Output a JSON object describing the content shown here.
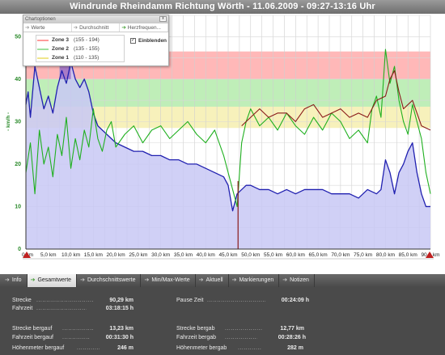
{
  "title": "Windrunde Rheindamm Richtung Wörth - 11.06.2009 - 09:27-13:16 Uhr",
  "chart_options": {
    "header": "Chartoptionen",
    "close": "x",
    "tabs": [
      {
        "label": "Werte",
        "active": false
      },
      {
        "label": "Durchschnitt",
        "active": false
      },
      {
        "label": "Herzfrequen...",
        "active": true
      }
    ],
    "zones": [
      {
        "name": "Zone 3",
        "range": "(155 - 194)",
        "color": "#ff9a9a"
      },
      {
        "name": "Zone 2",
        "range": "(135 - 155)",
        "color": "#9ee09e"
      },
      {
        "name": "Zone 1",
        "range": "(110 - 135)",
        "color": "#f0e68c"
      }
    ],
    "checkbox": {
      "label": "Einblenden",
      "checked": "✓"
    }
  },
  "chart_data": {
    "type": "line",
    "ylabel": "- km/h -",
    "ylim": [
      0,
      55
    ],
    "xlim": [
      0,
      90
    ],
    "yticks": [
      "0",
      "10",
      "20",
      "30",
      "40",
      "50"
    ],
    "xticks": [
      "0 km",
      "5,0 km",
      "10,0 km",
      "15,0 km",
      "20,0 km",
      "25,0 km",
      "30,0 km",
      "35,0 km",
      "40,0 km",
      "45,0 km",
      "50,0 km",
      "55,0 km",
      "60,0 km",
      "65,0 km",
      "70,0 km",
      "75,0 km",
      "80,0 km",
      "85,0 km",
      "90,0 km"
    ],
    "grid": true,
    "heart_rate_zones": [
      {
        "name": "Zone 3",
        "range": [
          155,
          194
        ],
        "color": "#ffb0b0"
      },
      {
        "name": "Zone 2",
        "range": [
          135,
          155
        ],
        "color": "#b8ecb0"
      },
      {
        "name": "Zone 1",
        "range": [
          110,
          135
        ],
        "color": "#f6f0b4"
      }
    ],
    "series": [
      {
        "color": "#2020b0",
        "fill": "#c8c8f4",
        "x": [
          0,
          0.5,
          1,
          2,
          3,
          4,
          5,
          6,
          7,
          8,
          9,
          10,
          11,
          12,
          13,
          14,
          15,
          16,
          17,
          18,
          20,
          22,
          24,
          26,
          28,
          30,
          32,
          34,
          36,
          38,
          40,
          42,
          44,
          45,
          46,
          47,
          48,
          49,
          50,
          52,
          54,
          56,
          58,
          60,
          62,
          64,
          66,
          68,
          70,
          72,
          74,
          76,
          78,
          79,
          80,
          81,
          82,
          83,
          84,
          85,
          86,
          87,
          88,
          89,
          90
        ],
        "y": [
          34,
          37,
          31,
          43,
          38,
          33,
          36,
          32,
          38,
          42,
          39,
          44,
          40,
          38,
          40,
          37,
          32,
          29,
          28,
          27,
          25,
          24,
          23,
          23,
          22,
          22,
          21,
          21,
          20,
          20,
          19,
          18,
          17,
          15,
          9,
          13,
          14,
          15,
          15,
          14,
          14,
          13,
          14,
          13,
          14,
          14,
          14,
          13,
          13,
          13,
          12,
          14,
          13,
          14,
          21,
          18,
          13,
          18,
          20,
          23,
          25,
          18,
          13,
          10,
          10
        ]
      },
      {
        "color": "#20b020",
        "x": [
          0,
          1,
          2,
          3,
          4,
          5,
          6,
          7,
          8,
          9,
          10,
          11,
          12,
          13,
          14,
          15,
          16,
          17,
          18,
          19,
          20,
          22,
          24,
          26,
          28,
          30,
          32,
          34,
          36,
          38,
          40,
          42,
          44,
          46,
          47,
          48,
          49,
          50,
          52,
          54,
          56,
          58,
          60,
          62,
          64,
          66,
          68,
          70,
          72,
          74,
          76,
          77,
          78,
          79,
          80,
          81,
          82,
          83,
          84,
          85,
          86,
          87,
          88,
          89,
          90
        ],
        "y": [
          18,
          25,
          13,
          28,
          20,
          24,
          17,
          27,
          22,
          31,
          19,
          26,
          21,
          28,
          24,
          33,
          26,
          23,
          28,
          30,
          24,
          27,
          29,
          25,
          28,
          29,
          26,
          28,
          30,
          27,
          25,
          28,
          22,
          14,
          10,
          25,
          30,
          33,
          29,
          31,
          28,
          32,
          29,
          27,
          31,
          28,
          32,
          30,
          26,
          28,
          25,
          33,
          36,
          31,
          47,
          39,
          43,
          35,
          30,
          27,
          34,
          30,
          26,
          18,
          13
        ]
      },
      {
        "color": "#8a1a1a",
        "x": [
          48,
          50,
          52,
          54,
          56,
          58,
          60,
          62,
          64,
          66,
          68,
          70,
          72,
          74,
          76,
          78,
          80,
          81,
          82,
          83,
          84,
          86,
          88,
          90
        ],
        "y": [
          29,
          31,
          33,
          31,
          32,
          32,
          30,
          33,
          34,
          31,
          32,
          33,
          31,
          32,
          31,
          35,
          36,
          40,
          42,
          37,
          33,
          35,
          29,
          28
        ]
      }
    ]
  },
  "tabs": [
    {
      "label": "Info",
      "active": false
    },
    {
      "label": "Gesamtwerte",
      "active": true
    },
    {
      "label": "Durchschnittswerte",
      "active": false
    },
    {
      "label": "Min/Max-Werte",
      "active": false
    },
    {
      "label": "Aktuell",
      "active": false
    },
    {
      "label": "Markierungen",
      "active": false
    },
    {
      "label": "Notizen",
      "active": false
    }
  ],
  "stats": {
    "strecke": {
      "label": "Strecke",
      "value": "90,29 km"
    },
    "fahrzeit": {
      "label": "Fahrzeit",
      "value": "03:18:15 h"
    },
    "pause_zeit": {
      "label": "Pause Zeit",
      "value": "00:24:09 h"
    },
    "strecke_bergauf": {
      "label": "Strecke bergauf",
      "value": "13,23 km"
    },
    "fahrzeit_bergauf": {
      "label": "Fahrzeit bergauf",
      "value": "00:31:30 h"
    },
    "hoehenmeter_bergauf": {
      "label": "Höhenmeter bergauf",
      "value": "246 m"
    },
    "strecke_bergab": {
      "label": "Strecke bergab",
      "value": "12,77 km"
    },
    "fahrzeit_bergab": {
      "label": "Fahrzeit bergab",
      "value": "00:28:26 h"
    },
    "hoehenmeter_bergab": {
      "label": "Höhenmeter bergab",
      "value": "282 m"
    }
  }
}
